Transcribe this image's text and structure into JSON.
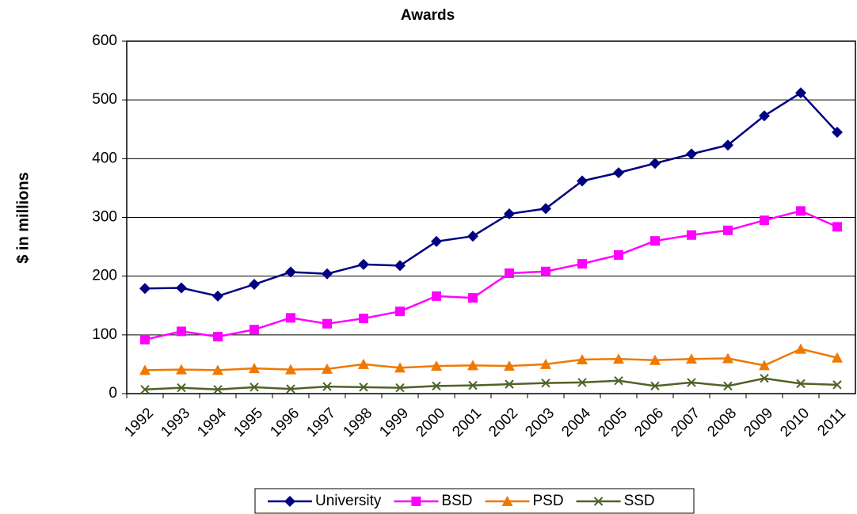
{
  "chart_data": {
    "type": "line",
    "title": "Awards",
    "y_label": "$ in millions",
    "categories": [
      "1992",
      "1993",
      "1994",
      "1995",
      "1996",
      "1997",
      "1998",
      "1999",
      "2000",
      "2001",
      "2002",
      "2003",
      "2004",
      "2005",
      "2006",
      "2007",
      "2008",
      "2009",
      "2010",
      "2011"
    ],
    "series": [
      {
        "name": "University",
        "color": "#000080",
        "marker": "diamond",
        "values": [
          179,
          180,
          166,
          186,
          207,
          204,
          220,
          218,
          259,
          268,
          306,
          315,
          362,
          376,
          392,
          408,
          423,
          473,
          512,
          445
        ]
      },
      {
        "name": "BSD",
        "color": "#ff00ff",
        "marker": "square",
        "values": [
          92,
          106,
          97,
          109,
          129,
          119,
          128,
          140,
          166,
          163,
          205,
          208,
          221,
          236,
          260,
          270,
          278,
          295,
          311,
          284
        ]
      },
      {
        "name": "PSD",
        "color": "#f07800",
        "marker": "triangle",
        "values": [
          40,
          41,
          40,
          43,
          41,
          42,
          50,
          44,
          47,
          48,
          47,
          50,
          58,
          59,
          57,
          59,
          60,
          48,
          76,
          61
        ]
      },
      {
        "name": "SSD",
        "color": "#4f6228",
        "marker": "x",
        "values": [
          7,
          10,
          7,
          11,
          8,
          12,
          11,
          10,
          13,
          14,
          16,
          18,
          19,
          22,
          13,
          19,
          13,
          26,
          17,
          15
        ]
      }
    ],
    "ylim": [
      0,
      600
    ],
    "yticks": [
      0,
      100,
      200,
      300,
      400,
      500,
      600
    ],
    "grid": true,
    "legend": "bottom"
  }
}
